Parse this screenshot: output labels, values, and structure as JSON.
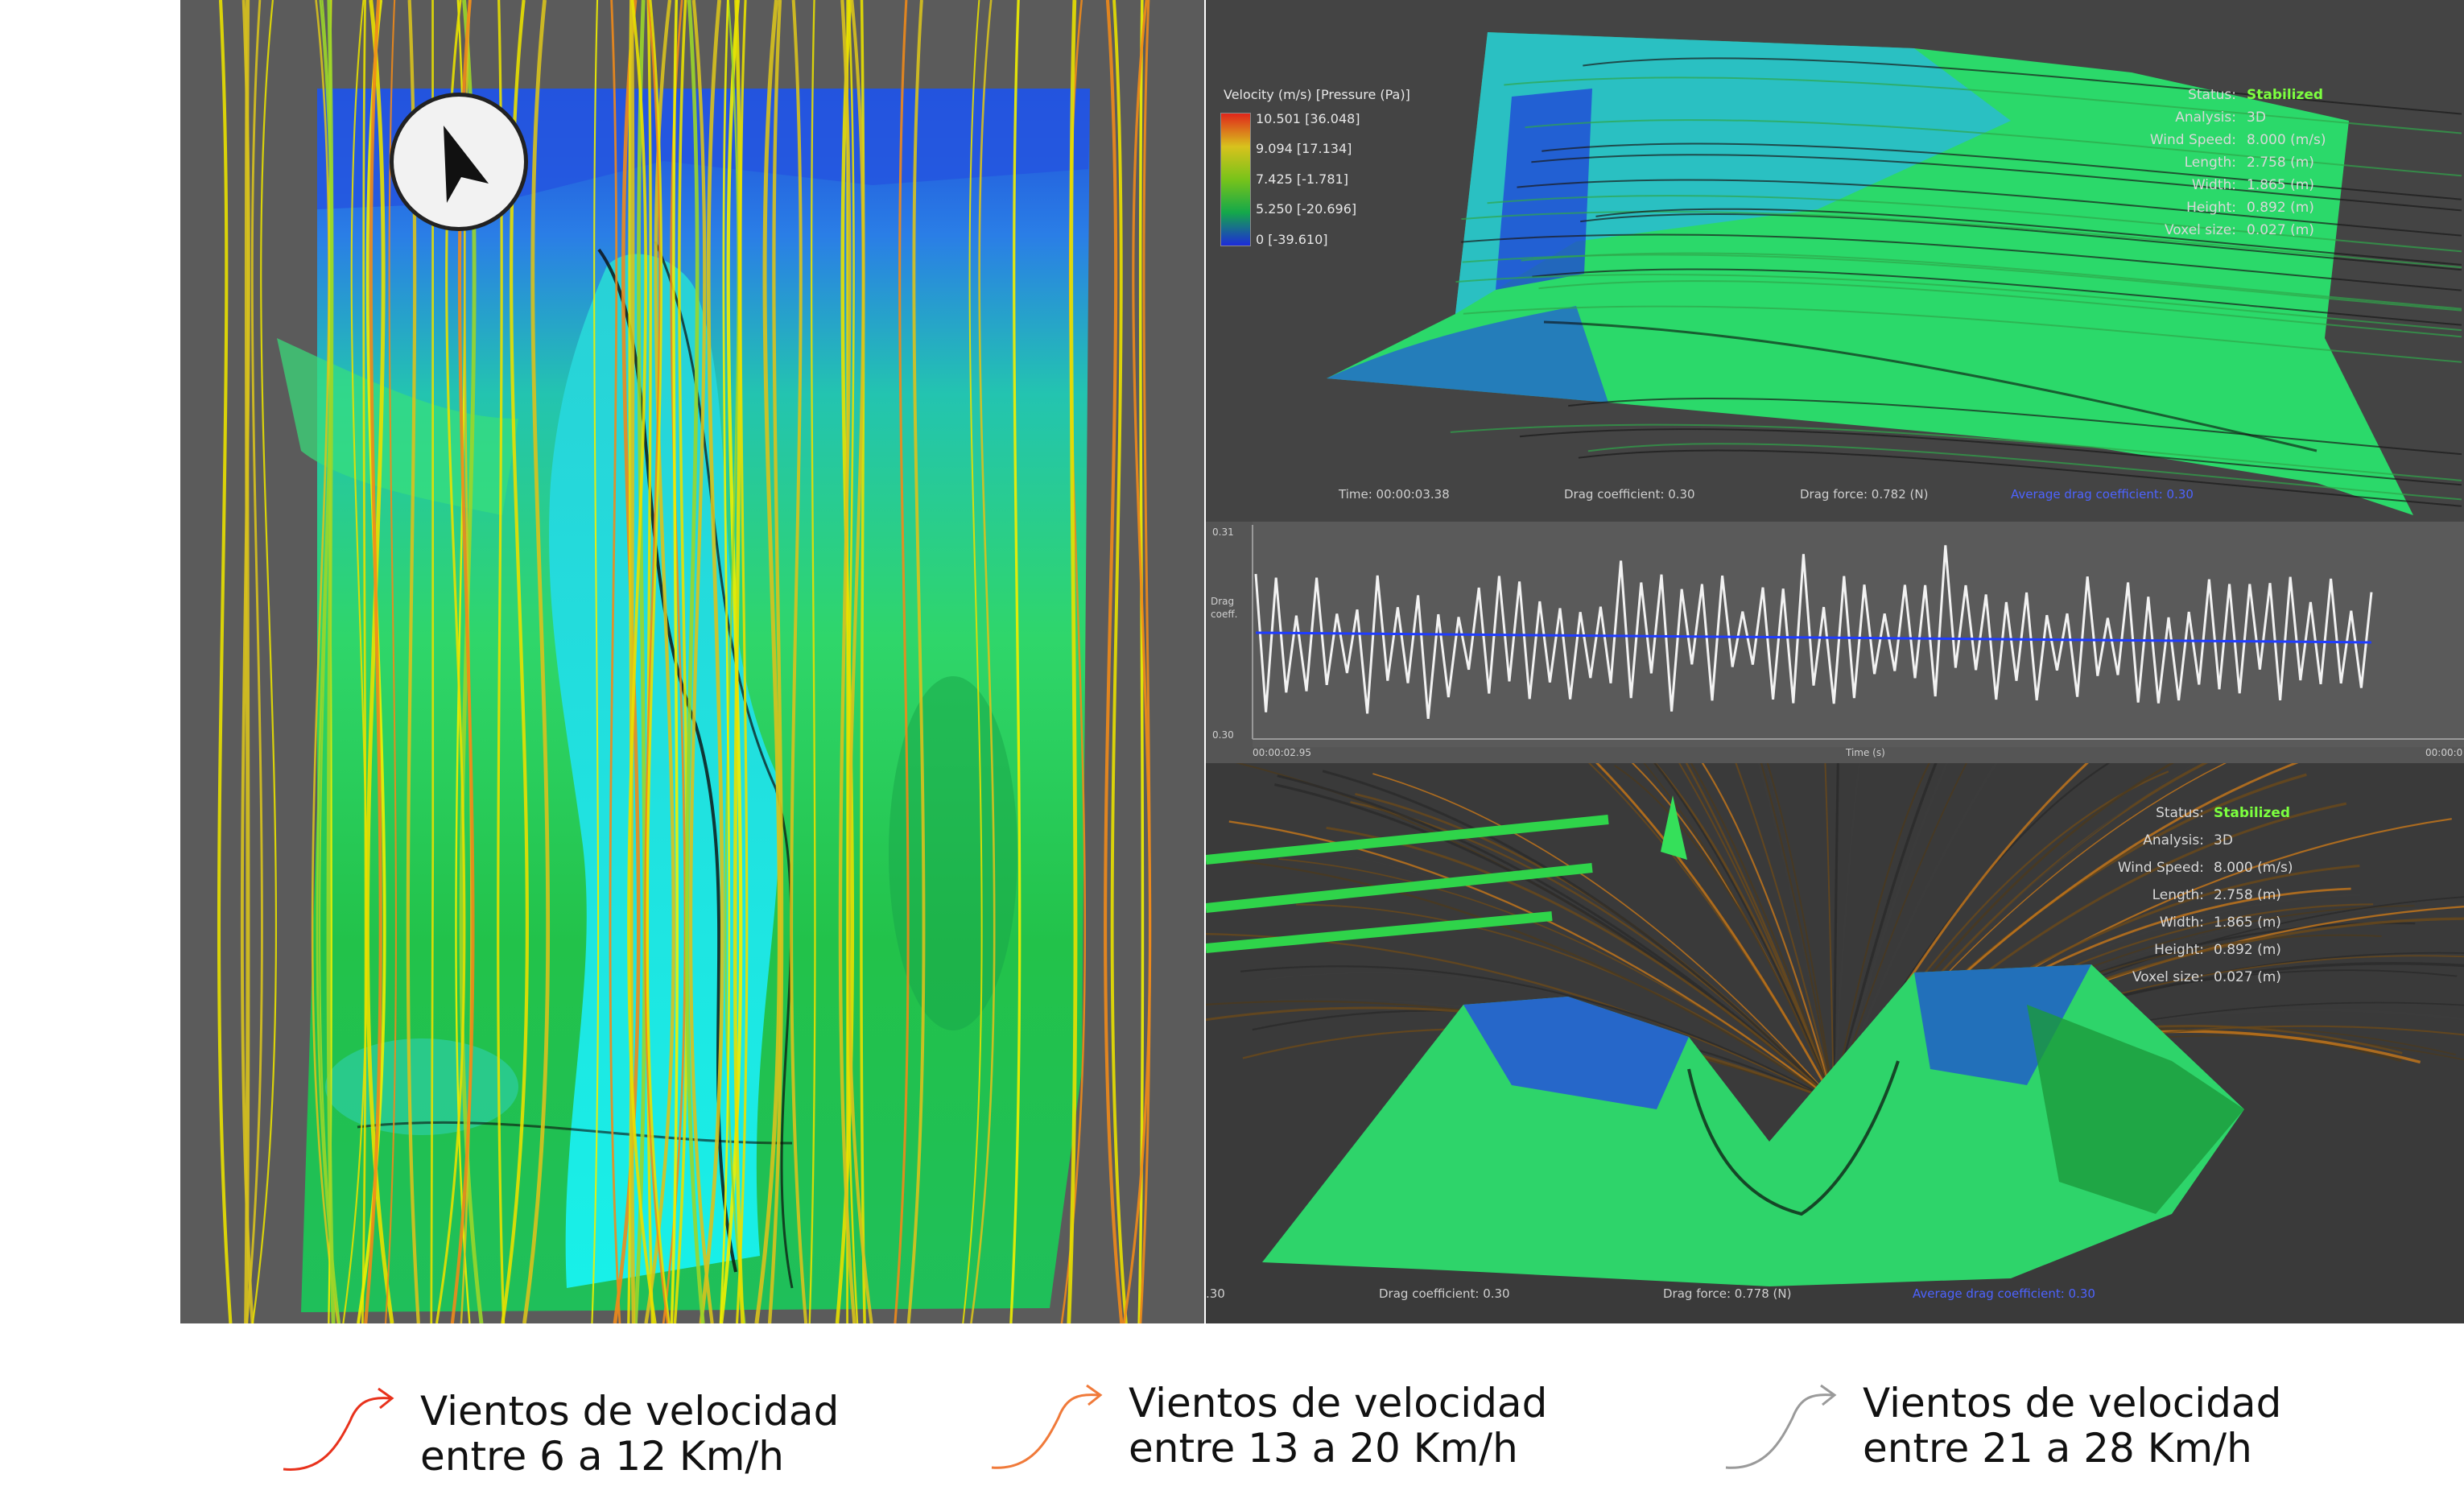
{
  "right_top": {
    "legend": {
      "title": "Velocity (m/s) [Pressure (Pa)]",
      "levels": [
        "10.501 [36.048]",
        "9.094 [17.134]",
        "7.425 [-1.781]",
        "5.250 [-20.696]",
        "0 [-39.610]"
      ],
      "colors": [
        "#e0261b",
        "#d8c21d",
        "#78c31a",
        "#14a84a",
        "#1d2bd9"
      ]
    },
    "stats": {
      "status_label": "Status:",
      "status_value": "Stabilized",
      "analysis_label": "Analysis:",
      "analysis_value": "3D",
      "wind_label": "Wind Speed:",
      "wind_value": "8.000 (m/s)",
      "length_label": "Length:",
      "length_value": "2.758 (m)",
      "width_label": "Width:",
      "width_value": "1.865 (m)",
      "height_label": "Height:",
      "height_value": "0.892 (m)",
      "voxel_label": "Voxel size:",
      "voxel_value": "0.027 (m)"
    },
    "footer": {
      "time": "Time: 00:00:03.38",
      "drag_coeff": "Drag coefficient: 0.30",
      "drag_force": "Drag force: 0.782 (N)",
      "avg_drag": "Average drag coefficient: 0.30"
    }
  },
  "graph": {
    "ymax": "0.31",
    "ymin": "0.30",
    "ylabel_1": "Drag",
    "ylabel_2": "coeff.",
    "x_start": "00:00:02.95",
    "x_end": "00:00:0",
    "xlabel": "Time (s)"
  },
  "right_bottom": {
    "stats": {
      "status_label": "Status:",
      "status_value": "Stabilized",
      "analysis_label": "Analysis:",
      "analysis_value": "3D",
      "wind_label": "Wind Speed:",
      "wind_value": "8.000 (m/s)",
      "length_label": "Length:",
      "length_value": "2.758 (m)",
      "width_label": "Width:",
      "width_value": "1.865 (m)",
      "height_label": "Height:",
      "height_value": "0.892 (m)",
      "voxel_label": "Voxel size:",
      "voxel_value": "0.027 (m)"
    },
    "footer": {
      "left": ".30",
      "drag_coeff": "Drag coefficient: 0.30",
      "drag_force": "Drag force: 0.778 (N)",
      "avg_drag": "Average drag coefficient: 0.30"
    }
  },
  "key": [
    {
      "line1": "Vientos de velocidad",
      "line2": "entre 6 a 12 Km/h",
      "color": "#e8321c"
    },
    {
      "line1": "Vientos de velocidad",
      "line2": "entre 13 a 20 Km/h",
      "color": "#f07a3a"
    },
    {
      "line1": "Vientos de velocidad",
      "line2": "entre 21 a 28 Km/h",
      "color": "#9a9a9a"
    }
  ],
  "icons": {
    "north_arrow": "north-arrow-icon",
    "key_arrow": "curved-arrow-icon"
  }
}
